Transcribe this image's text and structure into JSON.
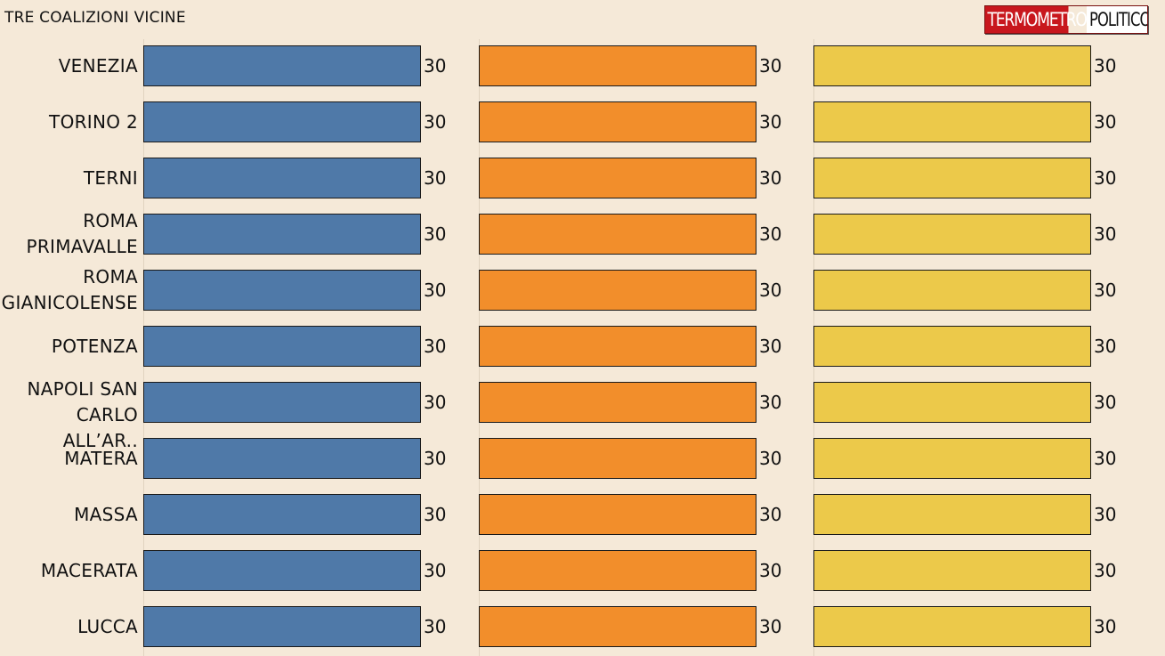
{
  "header": {
    "title": "TRE COALIZIONI VICINE",
    "logo_part1": "TERMOMETRO",
    "logo_part2": "POLITICO"
  },
  "colors": {
    "background": "#f5e9d8",
    "series": [
      "#4f79a8",
      "#f28e2b",
      "#ecc94a"
    ]
  },
  "chart_data": {
    "type": "bar",
    "orientation": "horizontal",
    "categories": [
      "VENEZIA",
      "TORINO 2",
      "TERNI",
      "ROMA\nPRIMAVALLE",
      "ROMA\nGIANICOLENSE",
      "POTENZA",
      "NAPOLI SAN\nCARLO ALL’AR..",
      "MATERA",
      "MASSA",
      "MACERATA",
      "LUCCA"
    ],
    "series": [
      {
        "values": [
          30,
          30,
          30,
          30,
          30,
          30,
          30,
          30,
          30,
          30,
          30
        ]
      },
      {
        "values": [
          30,
          30,
          30,
          30,
          30,
          30,
          30,
          30,
          30,
          30,
          30
        ]
      },
      {
        "values": [
          30,
          30,
          30,
          30,
          30,
          30,
          30,
          30,
          30,
          30,
          30
        ]
      }
    ],
    "xlim": [
      0,
      36
    ],
    "title": "TRE COALIZIONI VICINE",
    "xlabel": "",
    "ylabel": "",
    "data_labels": true,
    "legend": "none",
    "layout": "small multiples, one panel per series"
  }
}
